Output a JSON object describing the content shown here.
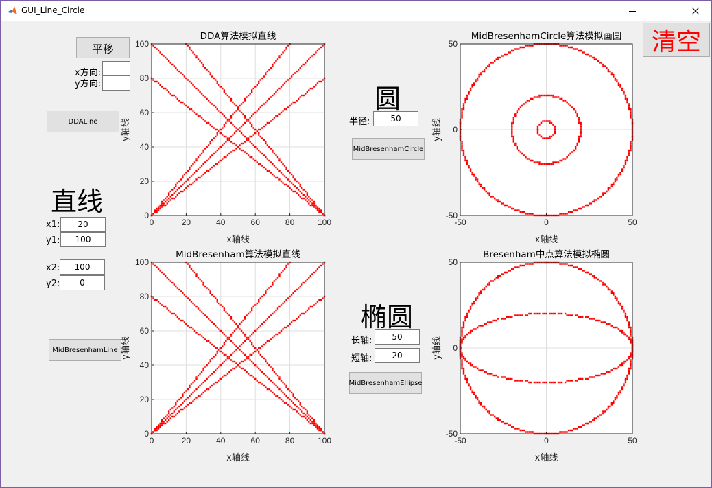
{
  "window": {
    "title": "GUI_Line_Circle"
  },
  "colors": {
    "plot_line": "#ff0000",
    "axes_bg": "#ffffff",
    "grid": "#dfdfdf",
    "clear_text": "#ff0000"
  },
  "icons": {
    "app": "matlab-icon",
    "minimize": "minimize-icon",
    "maximize": "maximize-icon",
    "close": "close-icon"
  },
  "controls": {
    "translate_button": "平移",
    "x_dir_label": "x方向:",
    "y_dir_label": "y方向:",
    "x_dir_value": "",
    "y_dir_value": "",
    "dda_button": "DDALine",
    "line_heading": "直线",
    "x1_label": "x1:",
    "x1_value": "20",
    "y1_label": "y1:",
    "y1_value": "100",
    "x2_label": "x2:",
    "x2_value": "100",
    "y2_label": "y2:",
    "y2_value": "0",
    "midline_button": "MidBresenhamLine",
    "circle_heading": "圆",
    "radius_label": "半径:",
    "radius_value": "50",
    "circle_button": "MidBresenhamCircle",
    "ellipse_heading": "椭圆",
    "major_label": "长轴:",
    "major_value": "50",
    "minor_label": "短轴:",
    "minor_value": "20",
    "ellipse_button": "MidBresenhamEllipse",
    "clear_button": "清空"
  },
  "chart_data": [
    {
      "type": "scatter",
      "title": "DDA算法模拟直线",
      "xlabel": "x轴线",
      "ylabel": "y轴线",
      "xlim": [
        0,
        100
      ],
      "ylim": [
        0,
        100
      ],
      "xticks": [
        0,
        20,
        40,
        60,
        80,
        100
      ],
      "yticks": [
        0,
        20,
        40,
        60,
        80,
        100
      ],
      "grid": true,
      "segments": [
        [
          0,
          0,
          80,
          100
        ],
        [
          0,
          0,
          100,
          100
        ],
        [
          0,
          0,
          100,
          80
        ],
        [
          0,
          100,
          100,
          0
        ],
        [
          20,
          100,
          100,
          0
        ],
        [
          0,
          80,
          100,
          0
        ]
      ]
    },
    {
      "type": "scatter",
      "title": "MidBresenham算法模拟直线",
      "xlabel": "x轴线",
      "ylabel": "y轴线",
      "xlim": [
        0,
        100
      ],
      "ylim": [
        0,
        100
      ],
      "xticks": [
        0,
        20,
        40,
        60,
        80,
        100
      ],
      "yticks": [
        0,
        20,
        40,
        60,
        80,
        100
      ],
      "grid": true,
      "segments": [
        [
          0,
          0,
          80,
          100
        ],
        [
          0,
          0,
          100,
          100
        ],
        [
          0,
          0,
          100,
          80
        ],
        [
          0,
          100,
          100,
          0
        ],
        [
          20,
          100,
          100,
          0
        ],
        [
          0,
          80,
          100,
          0
        ]
      ]
    },
    {
      "type": "scatter",
      "title": "MidBresenhamCircle算法模拟画圆",
      "xlabel": "x轴线",
      "ylabel": "y轴线",
      "xlim": [
        -50,
        50
      ],
      "ylim": [
        -50,
        50
      ],
      "xticks": [
        -50,
        0,
        50
      ],
      "yticks": [
        -50,
        0,
        50
      ],
      "grid": true,
      "circles": [
        50,
        20,
        5
      ]
    },
    {
      "type": "scatter",
      "title": "Bresenham中点算法模拟椭圆",
      "xlabel": "x轴线",
      "ylabel": "y轴线",
      "xlim": [
        -50,
        50
      ],
      "ylim": [
        -50,
        50
      ],
      "xticks": [
        -50,
        0,
        50
      ],
      "yticks": [
        -50,
        0,
        50
      ],
      "grid": true,
      "ellipses": [
        [
          50,
          50
        ],
        [
          50,
          20
        ]
      ]
    }
  ]
}
